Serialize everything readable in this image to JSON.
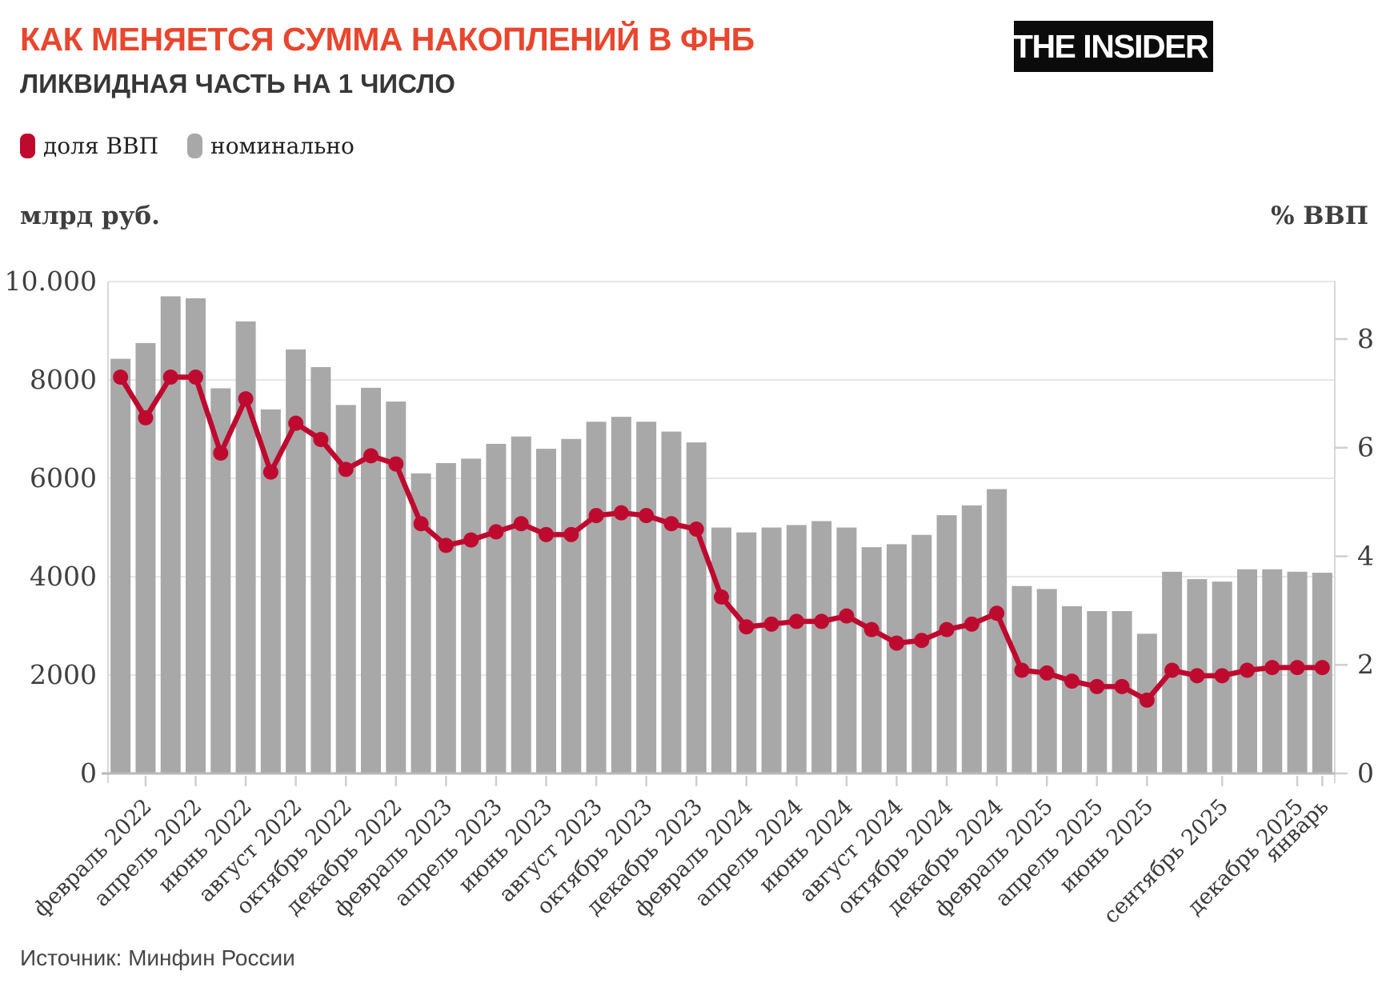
{
  "header": {
    "title": "КАК МЕНЯЕТСЯ СУММА НАКОПЛЕНИЙ В ФНБ",
    "subtitle": "ЛИКВИДНАЯ ЧАСТЬ НА 1 ЧИСЛО",
    "logo_text": "THE INSIDER"
  },
  "legend": [
    {
      "label": "доля ВВП",
      "color": "#bf0a2f"
    },
    {
      "label": "номинально",
      "color": "#a8a8a8"
    }
  ],
  "source": "Источник: Минфин России",
  "colors": {
    "bar": "#a8a8a8",
    "line": "#bf0a2f",
    "title_accent": "#e8462e",
    "grid": "#e7e7e7",
    "axis_line": "#d8d8d8",
    "baseline": "#b8b8b8",
    "tick": "#cfcfcf",
    "text": "#3f3f3f"
  },
  "chart_data": {
    "type": "bar+line",
    "title": "КАК МЕНЯЕТСЯ СУММА НАКОПЛЕНИЙ В ФНБ — ЛИКВИДНАЯ ЧАСТЬ НА 1 ЧИСЛО",
    "grid": true,
    "x_months": [
      "2022-01",
      "2022-02",
      "2022-03",
      "2022-04",
      "2022-05",
      "2022-06",
      "2022-07",
      "2022-08",
      "2022-09",
      "2022-10",
      "2022-11",
      "2022-12",
      "2023-01",
      "2023-02",
      "2023-03",
      "2023-04",
      "2023-05",
      "2023-06",
      "2023-07",
      "2023-08",
      "2023-09",
      "2023-10",
      "2023-11",
      "2023-12",
      "2024-01",
      "2024-02",
      "2024-03",
      "2024-04",
      "2024-05",
      "2024-06",
      "2024-07",
      "2024-08",
      "2024-09",
      "2024-10",
      "2024-11",
      "2024-12",
      "2025-01",
      "2025-02",
      "2025-03",
      "2025-04",
      "2025-05",
      "2025-06",
      "2025-07",
      "2025-08",
      "2025-09",
      "2025-10",
      "2025-11",
      "2025-12",
      "2026-01"
    ],
    "x_tick_labels": [
      {
        "i": 1,
        "label": "февраль 2022"
      },
      {
        "i": 3,
        "label": "апрель 2022"
      },
      {
        "i": 5,
        "label": "июнь 2022"
      },
      {
        "i": 7,
        "label": "август 2022"
      },
      {
        "i": 9,
        "label": "октябрь 2022"
      },
      {
        "i": 11,
        "label": "декабрь 2022"
      },
      {
        "i": 13,
        "label": "февраль 2023"
      },
      {
        "i": 15,
        "label": "апрель 2023"
      },
      {
        "i": 17,
        "label": "июнь 2023"
      },
      {
        "i": 19,
        "label": "август 2023"
      },
      {
        "i": 21,
        "label": "октябрь 2023"
      },
      {
        "i": 23,
        "label": "декабрь 2023"
      },
      {
        "i": 25,
        "label": "февраль 2024"
      },
      {
        "i": 27,
        "label": "апрель 2024"
      },
      {
        "i": 29,
        "label": "июнь 2024"
      },
      {
        "i": 31,
        "label": "август 2024"
      },
      {
        "i": 33,
        "label": "октябрь 2024"
      },
      {
        "i": 35,
        "label": "декабрь 2024"
      },
      {
        "i": 37,
        "label": "февраль 2025"
      },
      {
        "i": 39,
        "label": "апрель 2025"
      },
      {
        "i": 41,
        "label": "июнь 2025"
      },
      {
        "i": 44,
        "label": "сентябрь 2025"
      },
      {
        "i": 47,
        "label": "декабрь 2025"
      },
      {
        "i": 48,
        "label": "январь"
      }
    ],
    "series": [
      {
        "name": "номинально",
        "type": "bar",
        "axis": "left",
        "color": "#a8a8a8",
        "values": [
          8430,
          8750,
          9700,
          9660,
          7830,
          9190,
          7400,
          8620,
          8260,
          7490,
          7840,
          7560,
          6100,
          6310,
          6400,
          6700,
          6850,
          6600,
          6800,
          7150,
          7250,
          7150,
          6950,
          6730,
          5000,
          4900,
          5000,
          5050,
          5130,
          5000,
          4600,
          4660,
          4850,
          5250,
          5450,
          5780,
          3810,
          3750,
          3400,
          3300,
          3300,
          2840,
          4100,
          3950,
          3900,
          4150,
          4150,
          4100,
          4080
        ]
      },
      {
        "name": "доля ВВП",
        "type": "line",
        "axis": "right",
        "color": "#bf0a2f",
        "values": [
          7.3,
          6.55,
          7.3,
          7.3,
          5.9,
          6.9,
          5.55,
          6.45,
          6.15,
          5.6,
          5.85,
          5.7,
          4.6,
          4.2,
          4.3,
          4.45,
          4.6,
          4.4,
          4.4,
          4.75,
          4.8,
          4.75,
          4.6,
          4.5,
          3.25,
          2.7,
          2.75,
          2.8,
          2.8,
          2.9,
          2.65,
          2.4,
          2.45,
          2.65,
          2.75,
          2.95,
          1.9,
          1.85,
          1.7,
          1.6,
          1.6,
          1.35,
          1.9,
          1.8,
          1.8,
          1.9,
          1.95,
          1.95,
          1.95
        ]
      }
    ],
    "left_axis": {
      "label": "млрд руб.",
      "ticks": [
        "0",
        "2000",
        "4000",
        "6000",
        "8000",
        "10.000"
      ],
      "tick_values": [
        0,
        2000,
        4000,
        6000,
        8000,
        10000
      ],
      "min": 0,
      "max": 10000
    },
    "right_axis": {
      "label": "% ВВП",
      "ticks": [
        "0",
        "2",
        "4",
        "6",
        "8"
      ],
      "tick_values": [
        0,
        2,
        4,
        6,
        8
      ],
      "min": 0,
      "max": 9.06
    }
  }
}
